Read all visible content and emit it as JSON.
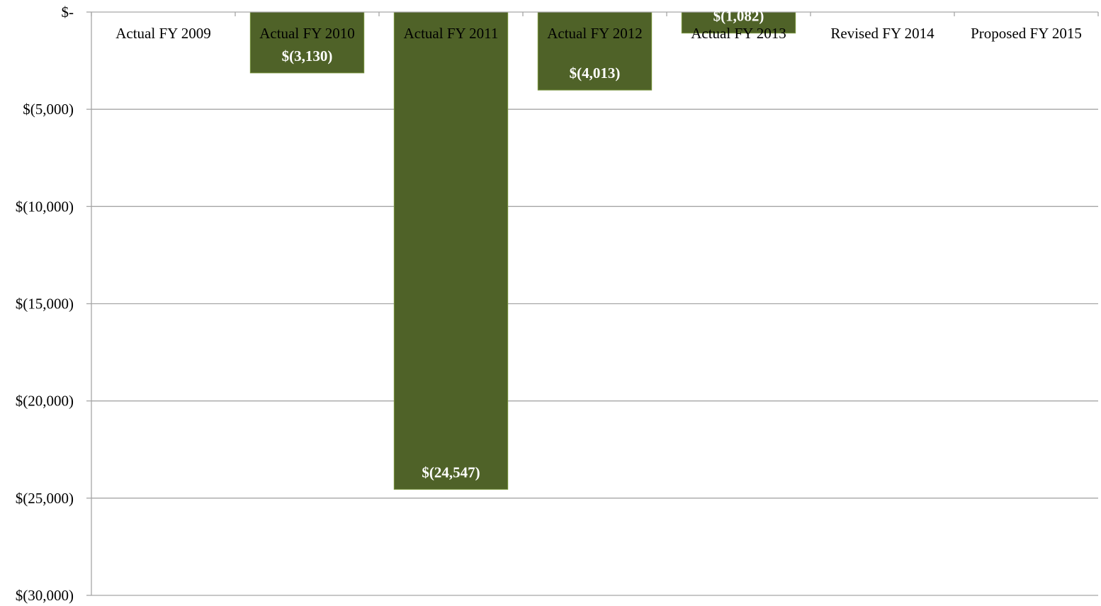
{
  "chart_data": {
    "type": "bar",
    "categories": [
      "Actual FY 2009",
      "Actual FY 2010",
      "Actual FY 2011",
      "Actual FY 2012",
      "Actual FY 2013",
      "Revised FY 2014",
      "Proposed FY 2015"
    ],
    "values": [
      null,
      -3130,
      -24547,
      -4013,
      -1082,
      null,
      null
    ],
    "data_labels": [
      "",
      "$(3,130)",
      "$(24,547)",
      "$(4,013)",
      "$(1,082)",
      "",
      ""
    ],
    "ylim": [
      -30000,
      0
    ],
    "y_ticks": [
      0,
      -5000,
      -10000,
      -15000,
      -20000,
      -25000,
      -30000
    ],
    "y_tick_labels": [
      "$-",
      "$(5,000)",
      "$(10,000)",
      "$(15,000)",
      "$(20,000)",
      "$(25,000)",
      "$(30,000)"
    ],
    "title": "",
    "xlabel": "",
    "ylabel": "",
    "grid": true,
    "legend": "none",
    "bar_color": "#4f6228",
    "bar_border_color": "#77933c",
    "gridline_color": "#a6a6a6",
    "category_label_position": "top"
  }
}
